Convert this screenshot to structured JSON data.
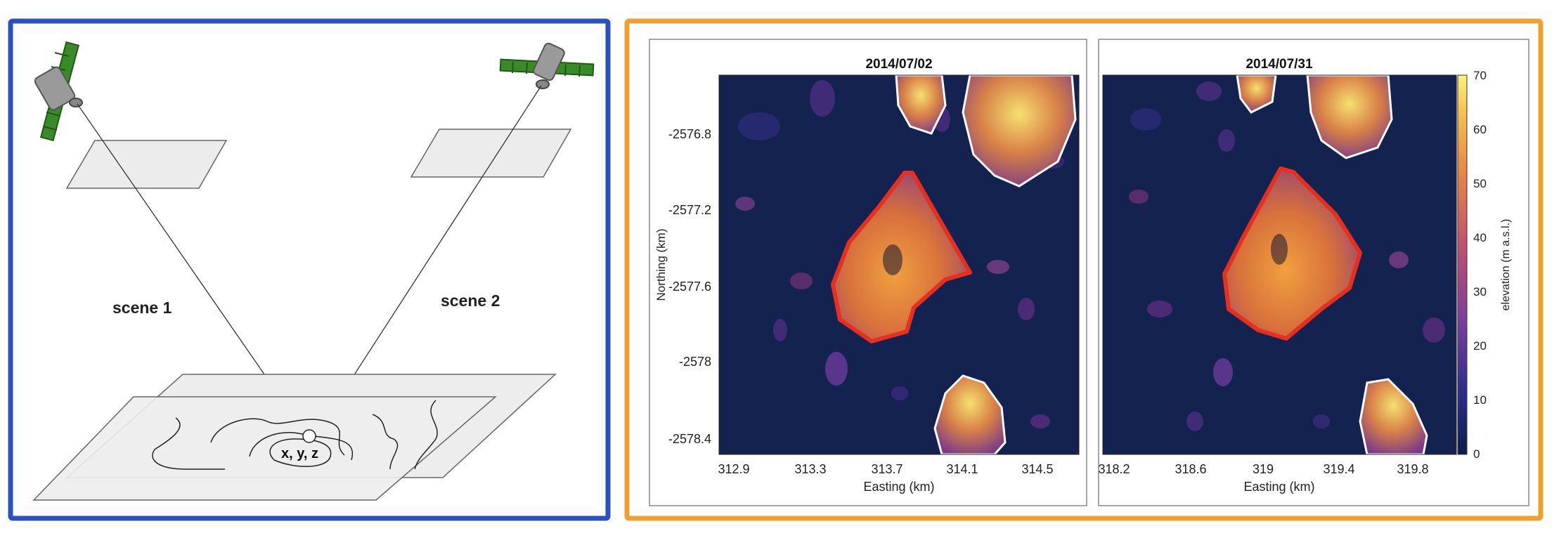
{
  "left_panel": {
    "scene1_label": "scene 1",
    "scene2_label": "scene 2",
    "point_label": "x, y, z",
    "frame_color": "#2a52be"
  },
  "right_panel": {
    "frame_color": "#f0a030",
    "colorbar": {
      "label": "elevation (m a.s.l.)",
      "ticks": [
        "70",
        "60",
        "50",
        "40",
        "30",
        "20",
        "10",
        "0"
      ],
      "range": [
        0,
        70
      ]
    },
    "left_map": {
      "title": "2014/07/02",
      "xlabel": "Easting (km)",
      "ylabel": "Northing (km)",
      "xticks": [
        "312.9",
        "313.3",
        "313.7",
        "314.1",
        "314.5"
      ],
      "yticks": [
        "-2576.8",
        "-2577.2",
        "-2577.6",
        "-2578",
        "-2578.4"
      ]
    },
    "right_map": {
      "title": "2014/07/31",
      "xlabel": "Easting (km)",
      "xticks": [
        "318.2",
        "318.6",
        "319",
        "319.4",
        "319.8"
      ]
    },
    "outline_color": "#e53020"
  }
}
